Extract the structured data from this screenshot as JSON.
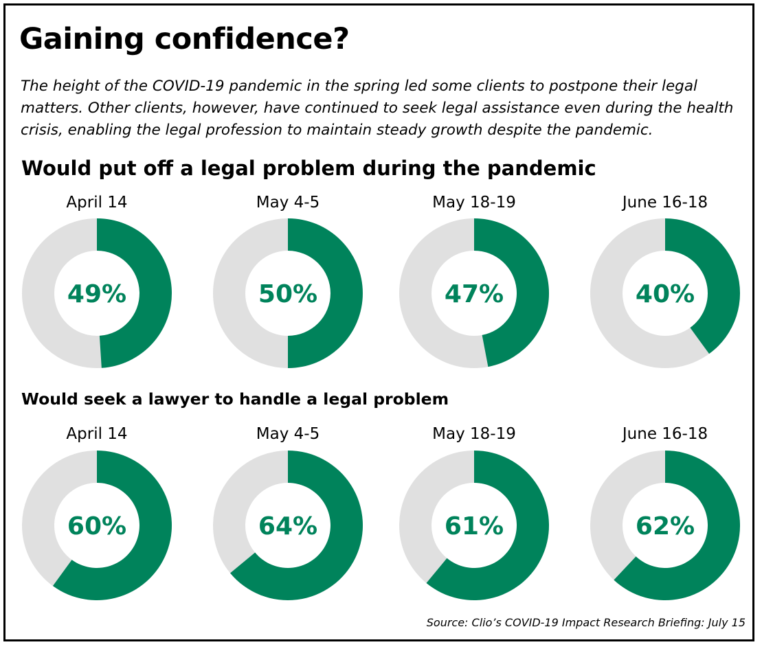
{
  "title": "Gaining confidence?",
  "subtitle": "The height of the COVID-19 pandemic in the spring led some clients to postpone their legal matters. Other clients, however, have continued to seek legal assistance even during the health crisis, enabling the legal profession to maintain steady growth despite the pandemic.",
  "source": "Source: Clio’s COVID-19 Impact Research Briefing: July 15",
  "colors": {
    "accent": "#00835b",
    "track": "#e0e0e0",
    "text": "#000000"
  },
  "chart_data": [
    {
      "type": "pie",
      "title": "Would put off a legal problem during the pandemic",
      "categories": [
        "April 14",
        "May 4-5",
        "May 18-19",
        "June 16-18"
      ],
      "values": [
        49,
        50,
        47,
        40
      ],
      "labels": [
        "49%",
        "50%",
        "47%",
        "40%"
      ]
    },
    {
      "type": "pie",
      "title": "Would seek a lawyer to handle a legal problem",
      "categories": [
        "April 14",
        "May 4-5",
        "May 18-19",
        "June 16-18"
      ],
      "values": [
        60,
        64,
        61,
        62
      ],
      "labels": [
        "60%",
        "64%",
        "61%",
        "62%"
      ]
    }
  ]
}
